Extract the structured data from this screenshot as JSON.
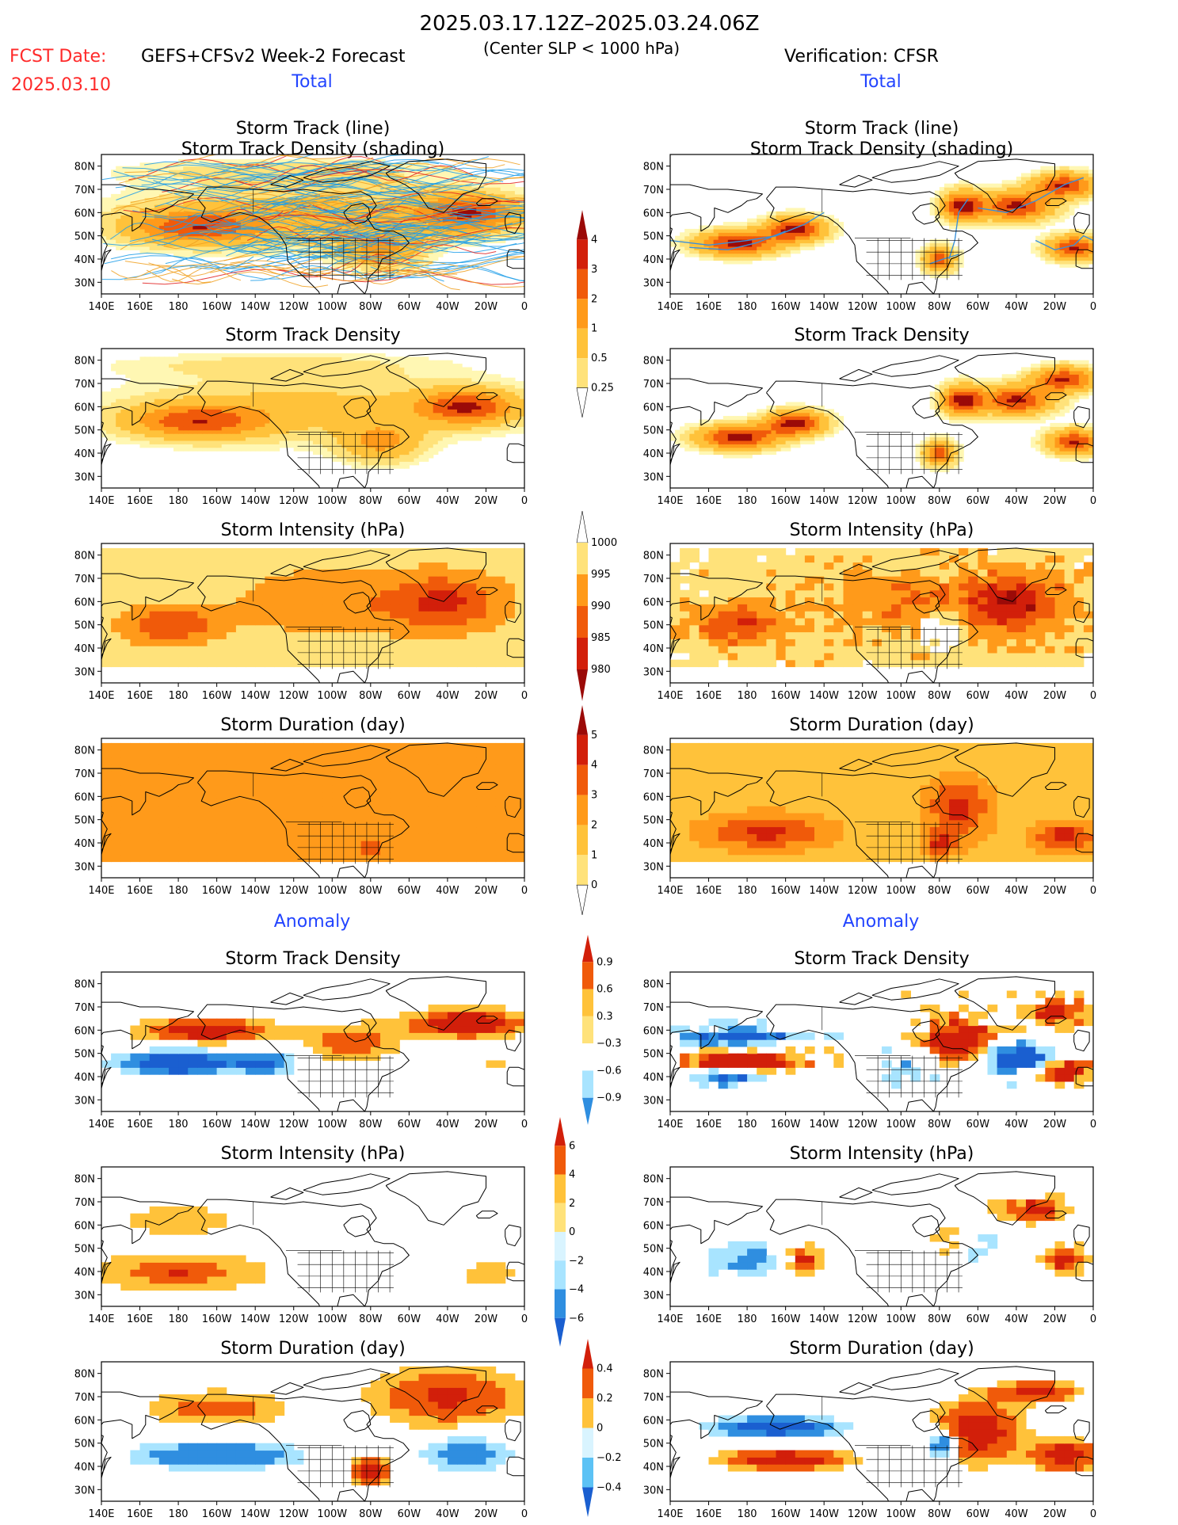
{
  "header": {
    "date_range": "2025.03.17.12Z–2025.03.24.06Z",
    "fcst_label": "FCST Date:",
    "fcst_date": "2025.03.10",
    "model": "GEFS+CFSv2 Week-2 Forecast",
    "criterion": "(Center SLP < 1000 hPa)",
    "verification": "Verification: CFSR",
    "total_label": "Total",
    "anomaly_label": "Anomaly"
  },
  "axes": {
    "x_ticks": [
      "140E",
      "160E",
      "180",
      "160W",
      "140W",
      "120W",
      "100W",
      "80W",
      "60W",
      "40W",
      "20W",
      "0"
    ],
    "y_ticks": [
      "80N",
      "70N",
      "60N",
      "50N",
      "40N",
      "30N"
    ]
  },
  "panel_titles": {
    "track_line": "Storm Track (line)",
    "track_shading": "Storm Track Density (shading)",
    "density": "Storm Track Density",
    "intensity": "Storm Intensity (hPa)",
    "duration": "Storm Duration (day)"
  },
  "colorbars": {
    "density_total": [
      "4",
      "3",
      "2",
      "1",
      "0.5",
      "0.25"
    ],
    "intensity_total": [
      "1000",
      "995",
      "990",
      "985",
      "980"
    ],
    "duration_total": [
      "5",
      "4",
      "3",
      "2",
      "1",
      "0"
    ],
    "density_anom": [
      "0.9",
      "0.6",
      "0.3",
      "−0.3",
      "−0.6",
      "−0.9"
    ],
    "intensity_anom": [
      "6",
      "4",
      "2",
      "0",
      "−2",
      "−4",
      "−6"
    ],
    "duration_anom": [
      "0.4",
      "0.2",
      "0",
      "−0.2",
      "−0.4"
    ]
  },
  "colors": {
    "title_red": "#ff2a2a",
    "title_blue": "#2244ff",
    "warm": [
      "#fff7b3",
      "#ffe27a",
      "#ffc23a",
      "#ff9a1a",
      "#f05a0a",
      "#d21f0a",
      "#9b0a08"
    ],
    "cool": [
      "#d9f4ff",
      "#a8e4ff",
      "#5cc2f5",
      "#2f8ee0",
      "#1a5fd0"
    ],
    "track_blue": "#1e9ee8",
    "track_orange": "#f0a020",
    "track_red": "#e02020"
  },
  "chart_data": [
    {
      "type": "heatmap",
      "panel": "forecast-total-track",
      "title": "Storm Track (line) / Storm Track Density (shading)",
      "field": "density_total",
      "band": "broad",
      "ylim": [
        25,
        85
      ],
      "xlim": [
        140,
        360
      ]
    },
    {
      "type": "heatmap",
      "panel": "verif-total-track",
      "title": "Storm Track (line) / Storm Track Density (shading)",
      "field": "density_total",
      "band": "narrow",
      "ylim": [
        25,
        85
      ],
      "xlim": [
        140,
        360
      ]
    },
    {
      "type": "heatmap",
      "panel": "forecast-total-density",
      "title": "Storm Track Density",
      "field": "density_total",
      "band": "broad",
      "ylim": [
        25,
        85
      ],
      "xlim": [
        140,
        360
      ]
    },
    {
      "type": "heatmap",
      "panel": "verif-total-density",
      "title": "Storm Track Density",
      "field": "density_total",
      "band": "narrow",
      "ylim": [
        25,
        85
      ],
      "xlim": [
        140,
        360
      ]
    },
    {
      "type": "heatmap",
      "panel": "forecast-total-intensity",
      "title": "Storm Intensity (hPa)",
      "field": "intensity_total",
      "ylim": [
        25,
        85
      ],
      "xlim": [
        140,
        360
      ]
    },
    {
      "type": "heatmap",
      "panel": "verif-total-intensity",
      "title": "Storm Intensity (hPa)",
      "field": "intensity_total",
      "ylim": [
        25,
        85
      ],
      "xlim": [
        140,
        360
      ]
    },
    {
      "type": "heatmap",
      "panel": "forecast-total-duration",
      "title": "Storm Duration (day)",
      "field": "duration_total",
      "ylim": [
        25,
        85
      ],
      "xlim": [
        140,
        360
      ]
    },
    {
      "type": "heatmap",
      "panel": "verif-total-duration",
      "title": "Storm Duration (day)",
      "field": "duration_total",
      "ylim": [
        25,
        85
      ],
      "xlim": [
        140,
        360
      ]
    },
    {
      "type": "heatmap",
      "panel": "forecast-anom-density",
      "title": "Storm Track Density",
      "field": "density_anom",
      "ylim": [
        25,
        85
      ],
      "xlim": [
        140,
        360
      ]
    },
    {
      "type": "heatmap",
      "panel": "verif-anom-density",
      "title": "Storm Track Density",
      "field": "density_anom",
      "ylim": [
        25,
        85
      ],
      "xlim": [
        140,
        360
      ]
    },
    {
      "type": "heatmap",
      "panel": "forecast-anom-intensity",
      "title": "Storm Intensity (hPa)",
      "field": "intensity_anom",
      "ylim": [
        25,
        85
      ],
      "xlim": [
        140,
        360
      ]
    },
    {
      "type": "heatmap",
      "panel": "verif-anom-intensity",
      "title": "Storm Intensity (hPa)",
      "field": "intensity_anom",
      "ylim": [
        25,
        85
      ],
      "xlim": [
        140,
        360
      ]
    },
    {
      "type": "heatmap",
      "panel": "forecast-anom-duration",
      "title": "Storm Duration (day)",
      "field": "duration_anom",
      "ylim": [
        25,
        85
      ],
      "xlim": [
        140,
        360
      ]
    },
    {
      "type": "heatmap",
      "panel": "verif-anom-duration",
      "title": "Storm Duration (day)",
      "field": "duration_anom",
      "ylim": [
        25,
        85
      ],
      "xlim": [
        140,
        360
      ]
    }
  ]
}
